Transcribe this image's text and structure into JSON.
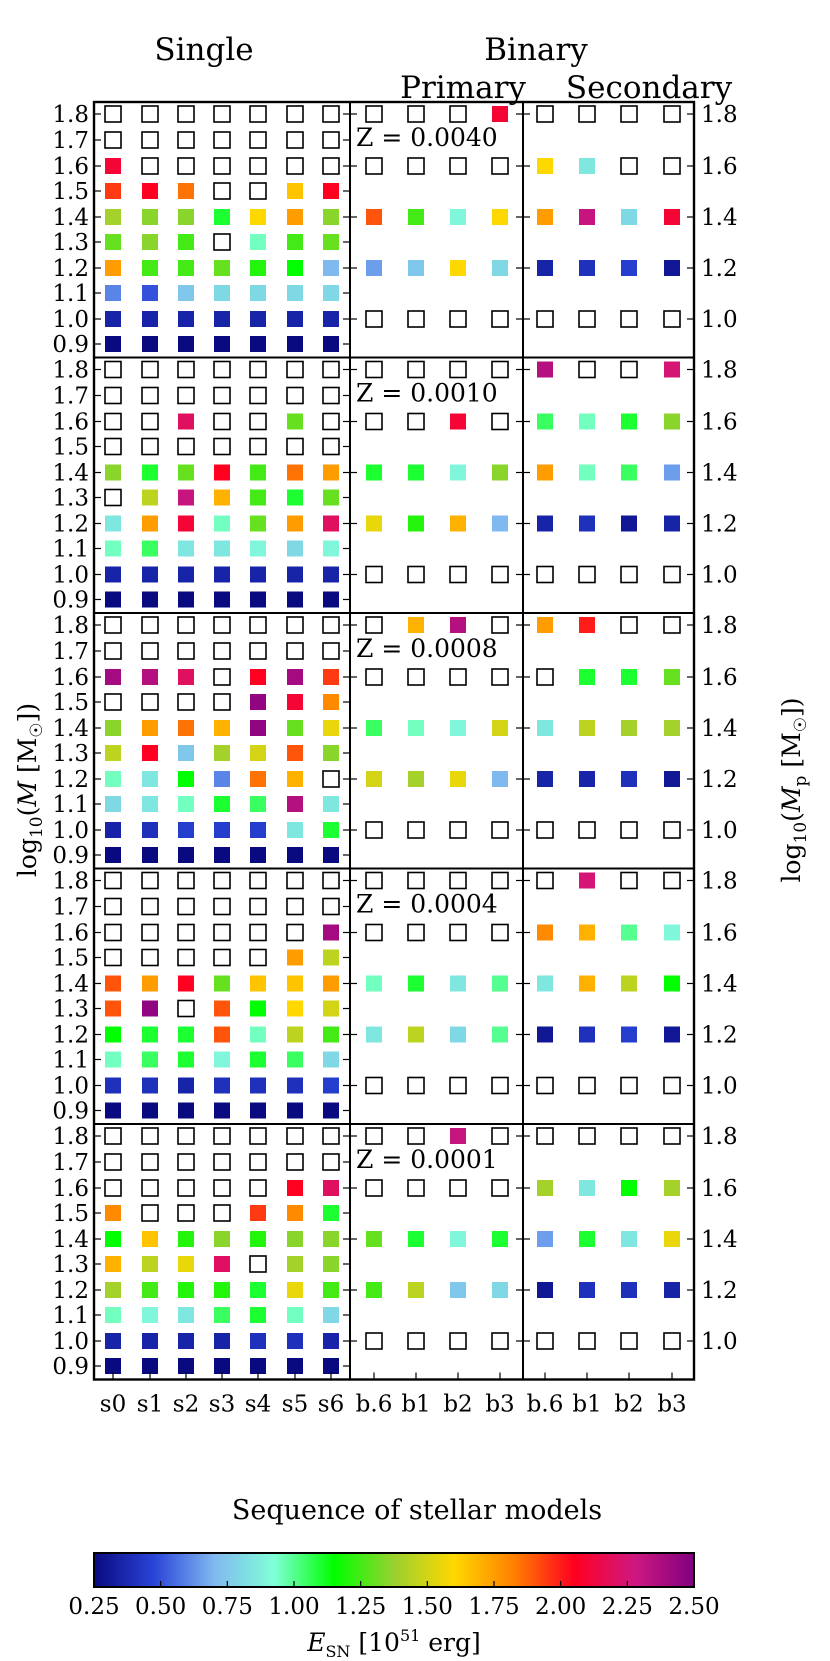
{
  "chart_data": {
    "type": "heatmap",
    "titles": {
      "single": "Single",
      "binary": "Binary",
      "primary": "Primary",
      "secondary": "Secondary"
    },
    "xlabel": "Sequence of stellar models",
    "ylabel_left": "log10(M [M☉])",
    "ylabel_right": "log10(Mp [M☉])",
    "single_models": [
      "s0",
      "s1",
      "s2",
      "s3",
      "s4",
      "s5",
      "s6"
    ],
    "binary_models": [
      "b.6",
      "b1",
      "b2",
      "b3"
    ],
    "single_mass_ticks": [
      "1.8",
      "1.7",
      "1.6",
      "1.5",
      "1.4",
      "1.3",
      "1.2",
      "1.1",
      "1.0",
      "0.9"
    ],
    "binary_mass_ticks": [
      "1.8",
      "1.6",
      "1.4",
      "1.2",
      "1.0"
    ],
    "colorbar": {
      "label": "E_SN [10^51 erg]",
      "min": 0.25,
      "max": 2.5,
      "ticks": [
        "0.25",
        "0.50",
        "0.75",
        "1.00",
        "1.25",
        "1.50",
        "1.75",
        "2.00",
        "2.25",
        "2.50"
      ],
      "colormap_stops": [
        "#0a0a80",
        "#2a44d8",
        "#80b8f0",
        "#80ffd8",
        "#00ff00",
        "#9ad030",
        "#ffd800",
        "#ff8000",
        "#ff0020",
        "#d01880",
        "#800080"
      ]
    },
    "note": "null = no explosion (empty square). Rows ordered from log10 M = 1.8 (top) to 0.9 (bottom); binary rows 1.8,1.6,1.4,1.2,1.0. Values are E_SN in 1e51 erg read from the colour scale.",
    "panels": [
      {
        "metallicity": "Z = 0.0040",
        "single": [
          [
            null,
            null,
            null,
            null,
            null,
            null,
            null
          ],
          [
            null,
            null,
            null,
            null,
            null,
            null,
            null
          ],
          [
            2.1,
            null,
            null,
            null,
            null,
            null,
            null
          ],
          [
            1.95,
            2.05,
            1.85,
            null,
            null,
            1.65,
            2.05
          ],
          [
            1.4,
            1.35,
            1.35,
            1.1,
            1.6,
            1.75,
            1.35
          ],
          [
            1.3,
            1.35,
            1.25,
            null,
            0.95,
            1.25,
            1.3
          ],
          [
            1.75,
            1.25,
            1.25,
            1.3,
            1.2,
            1.15,
            0.7
          ],
          [
            0.6,
            0.5,
            0.75,
            0.8,
            0.8,
            0.8,
            0.8
          ],
          [
            0.35,
            0.35,
            0.35,
            0.35,
            0.35,
            0.35,
            0.35
          ],
          [
            0.25,
            0.25,
            0.25,
            0.25,
            0.25,
            0.25,
            0.25
          ]
        ],
        "primary": [
          [
            null,
            null,
            null,
            2.1
          ],
          [
            null,
            null,
            null,
            null
          ],
          [
            1.9,
            1.25,
            0.9,
            1.6
          ],
          [
            0.65,
            0.75,
            1.6,
            0.8
          ],
          [
            null,
            null,
            null,
            null
          ]
        ],
        "secondary": [
          [
            null,
            null,
            null,
            null
          ],
          [
            1.6,
            0.85,
            null,
            null
          ],
          [
            1.75,
            2.3,
            0.8,
            2.1
          ],
          [
            0.35,
            0.4,
            0.45,
            0.3
          ],
          [
            null,
            null,
            null,
            null
          ]
        ]
      },
      {
        "metallicity": "Z = 0.0010",
        "single": [
          [
            null,
            null,
            null,
            null,
            null,
            null,
            null
          ],
          [
            null,
            null,
            null,
            null,
            null,
            null,
            null
          ],
          [
            null,
            null,
            2.2,
            null,
            null,
            1.3,
            null
          ],
          [
            null,
            null,
            null,
            null,
            null,
            null,
            null
          ],
          [
            1.35,
            1.1,
            1.3,
            2.05,
            1.25,
            1.85,
            1.75
          ],
          [
            null,
            1.45,
            2.3,
            1.7,
            1.25,
            1.1,
            1.3
          ],
          [
            0.85,
            1.75,
            2.1,
            0.95,
            1.3,
            1.75,
            2.2
          ],
          [
            0.95,
            1.05,
            0.85,
            0.85,
            0.9,
            0.8,
            0.9
          ],
          [
            0.35,
            0.35,
            0.35,
            0.35,
            0.35,
            0.35,
            0.35
          ],
          [
            0.25,
            0.25,
            0.25,
            0.25,
            0.25,
            0.25,
            0.25
          ]
        ],
        "primary": [
          [
            null,
            null,
            null,
            null
          ],
          [
            null,
            null,
            2.1,
            null
          ],
          [
            1.1,
            1.1,
            0.9,
            1.35
          ],
          [
            1.55,
            1.2,
            1.7,
            0.7
          ],
          [
            null,
            null,
            null,
            null
          ]
        ],
        "secondary": [
          [
            2.35,
            null,
            null,
            2.25
          ],
          [
            1.05,
            0.95,
            1.1,
            1.35
          ],
          [
            1.75,
            0.95,
            1.05,
            0.65
          ],
          [
            0.35,
            0.4,
            0.3,
            0.35
          ],
          [
            null,
            null,
            null,
            null
          ]
        ]
      },
      {
        "metallicity": "Z = 0.0008",
        "single": [
          [
            null,
            null,
            null,
            null,
            null,
            null,
            null
          ],
          [
            null,
            null,
            null,
            null,
            null,
            null,
            null
          ],
          [
            2.4,
            2.35,
            2.2,
            null,
            2.05,
            2.4,
            1.95
          ],
          [
            null,
            null,
            null,
            null,
            2.45,
            2.1,
            1.8
          ],
          [
            1.35,
            1.75,
            1.85,
            1.7,
            2.45,
            1.3,
            1.55
          ],
          [
            1.45,
            2.05,
            0.75,
            1.4,
            1.5,
            1.9,
            1.35
          ],
          [
            0.95,
            0.85,
            1.15,
            0.6,
            1.85,
            1.7,
            null
          ],
          [
            0.8,
            0.85,
            0.95,
            1.1,
            1.05,
            2.35,
            0.85
          ],
          [
            0.35,
            0.4,
            0.45,
            0.45,
            0.45,
            0.85,
            1.1
          ],
          [
            0.25,
            0.25,
            0.25,
            0.25,
            0.25,
            0.25,
            0.25
          ]
        ],
        "primary": [
          [
            null,
            1.7,
            2.35,
            null
          ],
          [
            null,
            null,
            null,
            null
          ],
          [
            1.05,
            0.95,
            0.9,
            1.5
          ],
          [
            1.5,
            1.4,
            1.55,
            0.7
          ],
          [
            null,
            null,
            null,
            null
          ]
        ],
        "secondary": [
          [
            1.75,
            2.0,
            null,
            null
          ],
          [
            null,
            1.1,
            1.1,
            1.3
          ],
          [
            0.85,
            1.45,
            1.4,
            1.4
          ],
          [
            0.35,
            0.35,
            0.4,
            0.3
          ],
          [
            null,
            null,
            null,
            null
          ]
        ]
      },
      {
        "metallicity": "Z = 0.0004",
        "single": [
          [
            null,
            null,
            null,
            null,
            null,
            null,
            null
          ],
          [
            null,
            null,
            null,
            null,
            null,
            null,
            null
          ],
          [
            null,
            null,
            null,
            null,
            null,
            null,
            2.4
          ],
          [
            null,
            null,
            null,
            null,
            null,
            1.75,
            1.45
          ],
          [
            1.9,
            1.75,
            2.05,
            1.3,
            1.65,
            1.65,
            1.75
          ],
          [
            1.9,
            2.45,
            null,
            1.9,
            1.15,
            1.6,
            1.5
          ],
          [
            1.15,
            1.1,
            1.1,
            1.9,
            0.95,
            1.45,
            1.25
          ],
          [
            0.95,
            1.05,
            1.1,
            0.9,
            1.1,
            1.05,
            0.8
          ],
          [
            0.4,
            0.4,
            0.35,
            0.4,
            0.4,
            0.4,
            0.45
          ],
          [
            0.25,
            0.25,
            0.25,
            0.25,
            0.25,
            0.25,
            0.25
          ]
        ],
        "primary": [
          [
            null,
            null,
            null,
            null
          ],
          [
            null,
            null,
            null,
            null
          ],
          [
            0.95,
            1.1,
            0.85,
            1.0
          ],
          [
            0.85,
            1.45,
            0.8,
            1.0
          ],
          [
            null,
            null,
            null,
            null
          ]
        ],
        "secondary": [
          [
            null,
            2.25,
            null,
            null
          ],
          [
            1.8,
            1.7,
            1.0,
            0.9
          ],
          [
            0.85,
            1.7,
            1.45,
            1.15
          ],
          [
            0.3,
            0.4,
            0.45,
            0.3
          ],
          [
            null,
            null,
            null,
            null
          ]
        ]
      },
      {
        "metallicity": "Z = 0.0001",
        "single": [
          [
            null,
            null,
            null,
            null,
            null,
            null,
            null
          ],
          [
            null,
            null,
            null,
            null,
            null,
            null,
            null
          ],
          [
            null,
            null,
            null,
            null,
            null,
            2.05,
            2.2
          ],
          [
            1.8,
            null,
            null,
            null,
            1.95,
            1.8,
            1.1
          ],
          [
            1.15,
            1.65,
            1.2,
            1.35,
            1.2,
            1.35,
            1.35
          ],
          [
            1.7,
            1.45,
            1.55,
            2.2,
            null,
            1.4,
            1.35
          ],
          [
            1.4,
            1.25,
            1.2,
            1.2,
            1.1,
            1.55,
            1.25
          ],
          [
            0.95,
            0.9,
            0.85,
            1.05,
            1.1,
            0.95,
            0.8
          ],
          [
            0.35,
            0.35,
            0.35,
            0.35,
            0.4,
            0.4,
            0.35
          ],
          [
            0.25,
            0.25,
            0.25,
            0.25,
            0.25,
            0.25,
            0.25
          ]
        ],
        "primary": [
          [
            null,
            null,
            2.3,
            null
          ],
          [
            null,
            null,
            null,
            null
          ],
          [
            1.3,
            1.1,
            0.9,
            1.1
          ],
          [
            1.25,
            1.45,
            0.75,
            0.8
          ],
          [
            null,
            null,
            null,
            null
          ]
        ],
        "secondary": [
          [
            null,
            null,
            null,
            null
          ],
          [
            1.4,
            0.85,
            1.15,
            1.4
          ],
          [
            0.65,
            1.1,
            0.85,
            1.55
          ],
          [
            0.3,
            0.4,
            0.4,
            0.35
          ],
          [
            null,
            null,
            null,
            null
          ]
        ]
      }
    ]
  }
}
